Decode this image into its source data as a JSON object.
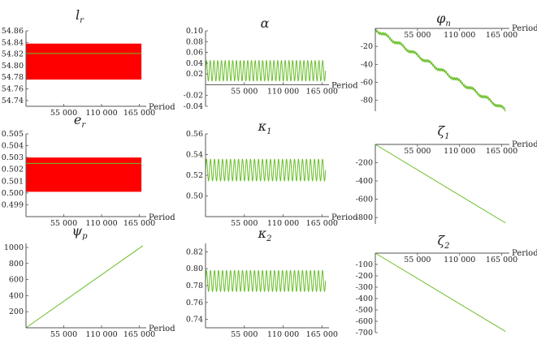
{
  "chart_data": [
    {
      "type": "line",
      "title": "l",
      "title_sub": "r",
      "xlabel": "Period",
      "xlim": [
        0,
        175000
      ],
      "ylim": [
        54.73,
        54.86
      ],
      "x_at_y": 54.73,
      "xticks": [
        55000,
        110000,
        165000
      ],
      "xtick_labels": [
        "55 000",
        "110 000",
        "165 000"
      ],
      "yticks": [
        54.74,
        54.76,
        54.78,
        54.8,
        54.82,
        54.84,
        54.86
      ],
      "ytick_labels": [
        "54.74",
        "54.76",
        "54.78",
        "54.80",
        "54.82",
        "54.84",
        "54.86"
      ],
      "series": [
        {
          "kind": "band",
          "color": "#ff0000",
          "x": [
            0,
            168000
          ],
          "low": 54.776,
          "high": 54.838
        },
        {
          "kind": "line",
          "color": "#6abf2a",
          "x": [
            0,
            168000
          ],
          "y": [
            54.821,
            54.821
          ]
        }
      ]
    },
    {
      "type": "line",
      "title": "α",
      "title_sub": "",
      "xlabel": "Period",
      "xlim": [
        0,
        175000
      ],
      "ylim": [
        -0.04,
        0.1
      ],
      "x_at_y": 0,
      "xticks": [
        55000,
        110000,
        165000
      ],
      "xtick_labels": [
        "55 000",
        "110 000",
        "165 000"
      ],
      "yticks": [
        -0.04,
        -0.02,
        0.02,
        0.04,
        0.06,
        0.08,
        0.1
      ],
      "ytick_labels": [
        "-0.04",
        "-0.02",
        "0.02",
        "0.04",
        "0.06",
        "0.08",
        "0.10"
      ],
      "series": [
        {
          "kind": "osc",
          "color": "#6abf2a",
          "x0": 0,
          "x1": 170000,
          "center": 0.026,
          "amp": 0.019,
          "cycles": 32
        }
      ]
    },
    {
      "type": "line",
      "title": "φ",
      "title_sub": "n",
      "xlabel": "Period",
      "xlim": [
        0,
        175000
      ],
      "ylim": [
        -92,
        0
      ],
      "x_at_y": 0,
      "x_top": true,
      "xticks": [
        55000,
        110000,
        165000
      ],
      "xtick_labels": [
        "55 000",
        "110 000",
        "165 000"
      ],
      "yticks": [
        -20,
        -40,
        -60,
        -80
      ],
      "ytick_labels": [
        "-20",
        "-40",
        "-60",
        "-80"
      ],
      "series": [
        {
          "kind": "stairs",
          "color": "#6abf2a",
          "x0": 0,
          "x1": 170000,
          "y0": -1,
          "y1": -91,
          "steps": 9,
          "wiggle": 1.5
        }
      ]
    },
    {
      "type": "line",
      "title": "e",
      "title_sub": "r",
      "xlabel": "Period",
      "xlim": [
        0,
        175000
      ],
      "ylim": [
        0.498,
        0.505
      ],
      "x_at_y": 0.498,
      "xticks": [
        55000,
        110000,
        165000
      ],
      "xtick_labels": [
        "55 000",
        "110 000",
        "165 000"
      ],
      "yticks": [
        0.499,
        0.5,
        0.501,
        0.502,
        0.503,
        0.504,
        0.505
      ],
      "ytick_labels": [
        "0.499",
        "0.500",
        "0.501",
        "0.502",
        "0.503",
        "0.504",
        "0.505"
      ],
      "series": [
        {
          "kind": "band",
          "color": "#ff0000",
          "x": [
            0,
            168000
          ],
          "low": 0.5001,
          "high": 0.503
        },
        {
          "kind": "line",
          "color": "#6abf2a",
          "x": [
            0,
            168000
          ],
          "y": [
            0.5025,
            0.5025
          ]
        }
      ]
    },
    {
      "type": "line",
      "title": "κ",
      "title_sub": "1",
      "xlabel": "Period",
      "xlim": [
        0,
        175000
      ],
      "ylim": [
        0.48,
        0.56
      ],
      "x_at_y": 0.48,
      "xticks": [
        55000,
        110000,
        165000
      ],
      "xtick_labels": [
        "55 000",
        "110 000",
        "165 000"
      ],
      "yticks": [
        0.5,
        0.52,
        0.54,
        0.56
      ],
      "ytick_labels": [
        "0.50",
        "0.52",
        "0.54",
        "0.56"
      ],
      "series": [
        {
          "kind": "osc",
          "color": "#6abf2a",
          "x0": 0,
          "x1": 170000,
          "center": 0.525,
          "amp": 0.0105,
          "cycles": 30
        }
      ]
    },
    {
      "type": "line",
      "title": "ζ",
      "title_sub": "1",
      "xlabel": "Period",
      "xlim": [
        0,
        175000
      ],
      "ylim": [
        -870,
        0
      ],
      "x_at_y": 0,
      "x_top": true,
      "xticks": [
        55000,
        110000,
        165000
      ],
      "xtick_labels": [
        "55 000",
        "110 000",
        "165 000"
      ],
      "yticks": [
        -200,
        -400,
        -600,
        -800
      ],
      "ytick_labels": [
        "-200",
        "-400",
        "-600",
        "-800"
      ],
      "series": [
        {
          "kind": "line",
          "color": "#6abf2a",
          "x": [
            0,
            170000
          ],
          "y": [
            0,
            -860
          ]
        }
      ]
    },
    {
      "type": "line",
      "title": "ψ",
      "title_sub": "p",
      "xlabel": "Period",
      "xlim": [
        0,
        175000
      ],
      "ylim": [
        0,
        1050
      ],
      "x_at_y": 0,
      "xticks": [
        55000,
        110000,
        165000
      ],
      "xtick_labels": [
        "55 000",
        "110 000",
        "165 000"
      ],
      "yticks": [
        200,
        400,
        600,
        800,
        1000
      ],
      "ytick_labels": [
        "200",
        "400",
        "600",
        "800",
        "1000"
      ],
      "series": [
        {
          "kind": "line",
          "color": "#6abf2a",
          "x": [
            0,
            170000
          ],
          "y": [
            0,
            1020
          ]
        }
      ]
    },
    {
      "type": "line",
      "title": "κ",
      "title_sub": "2",
      "xlabel": "",
      "xlim": [
        0,
        175000
      ],
      "ylim": [
        0.73,
        0.83
      ],
      "x_at_y": 0.73,
      "xticks": [
        55000,
        110000,
        165000
      ],
      "xtick_labels": [
        "55 000",
        "110 000",
        "165 000"
      ],
      "yticks": [
        0.74,
        0.76,
        0.78,
        0.8,
        0.82
      ],
      "ytick_labels": [
        "0.74",
        "0.76",
        "0.78",
        "0.80",
        "0.82"
      ],
      "series": [
        {
          "kind": "osc",
          "color": "#6abf2a",
          "x0": 0,
          "x1": 170000,
          "center": 0.7855,
          "amp": 0.0125,
          "cycles": 30
        }
      ]
    },
    {
      "type": "line",
      "title": "ζ",
      "title_sub": "2",
      "xlabel": "Period",
      "xlim": [
        0,
        175000
      ],
      "ylim": [
        -700,
        0
      ],
      "x_at_y": 0,
      "x_top": true,
      "xticks": [
        55000,
        110000,
        165000
      ],
      "xtick_labels": [
        "55 000",
        "110 000",
        "165 000"
      ],
      "yticks": [
        -100,
        -200,
        -300,
        -400,
        -500,
        -600,
        -700
      ],
      "ytick_labels": [
        "-100",
        "-200",
        "-300",
        "-400",
        "-500",
        "-600",
        "-700"
      ],
      "series": [
        {
          "kind": "line",
          "color": "#6abf2a",
          "x": [
            0,
            170000
          ],
          "y": [
            0,
            -690
          ]
        }
      ]
    }
  ]
}
